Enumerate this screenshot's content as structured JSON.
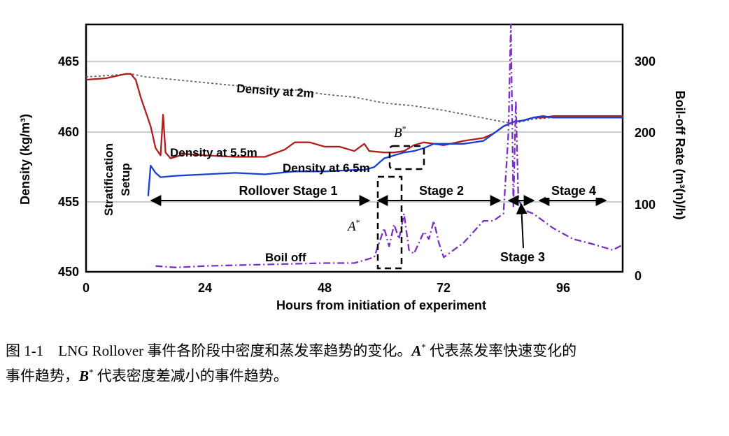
{
  "chart_data": {
    "type": "line",
    "xlabel": "Hours from initiation of experiment",
    "ylabel_left": "Density (kg/m³)",
    "ylabel_right": "Boil-off Rate (m³(n)/h)",
    "xlim": [
      0,
      108
    ],
    "ylim_left": [
      450,
      467
    ],
    "ylim_right": [
      0,
      340
    ],
    "x_ticks": [
      "0",
      "24",
      "48",
      "72",
      "96"
    ],
    "y_left_ticks": [
      "450",
      "455",
      "460",
      "465"
    ],
    "y_right_ticks": [
      "0",
      "100",
      "200",
      "300"
    ],
    "grid": true,
    "series": [
      {
        "name": "Density at 2m",
        "axis": "left",
        "color": "#666666",
        "style": "dotted",
        "x": [
          0,
          5,
          9,
          12,
          18,
          24,
          30,
          36,
          42,
          48,
          54,
          60,
          66,
          72,
          78,
          84,
          86,
          90,
          94,
          108
        ],
        "y": [
          463.4,
          463.5,
          463.6,
          463.4,
          463.2,
          463.0,
          462.8,
          462.6,
          462.5,
          462.2,
          462.0,
          461.6,
          461.4,
          461.1,
          460.7,
          460.3,
          460.2,
          460.5,
          460.6,
          460.6
        ]
      },
      {
        "name": "Density at 5.5m",
        "axis": "left",
        "color": "#b01e1e",
        "style": "solid",
        "x": [
          0,
          4,
          8,
          9,
          10,
          11,
          12,
          13,
          14,
          15,
          15.5,
          16,
          17,
          20,
          24,
          30,
          36,
          40,
          42,
          45,
          48,
          51,
          54,
          56,
          57,
          60,
          62,
          64,
          66,
          68,
          70,
          72,
          76,
          80,
          82,
          84,
          86,
          88,
          90,
          92,
          94,
          100,
          108
        ],
        "y": [
          463.2,
          463.3,
          463.6,
          463.6,
          463.2,
          462.0,
          461.0,
          460.0,
          458.5,
          458.0,
          460.8,
          458.2,
          457.8,
          458.1,
          458.0,
          457.9,
          457.9,
          458.4,
          458.9,
          458.9,
          458.6,
          458.6,
          458.3,
          458.8,
          458.3,
          458.2,
          458.2,
          458.3,
          458.7,
          458.9,
          458.8,
          458.7,
          459.0,
          459.2,
          459.5,
          460.0,
          460.3,
          460.4,
          460.6,
          460.6,
          460.7,
          460.7,
          460.7
        ]
      },
      {
        "name": "Density at 6.5m",
        "axis": "left",
        "color": "#1a3fd4",
        "style": "solid",
        "x": [
          12.5,
          13,
          14,
          15,
          18,
          24,
          30,
          36,
          42,
          48,
          54,
          56,
          58,
          60,
          62,
          64,
          66,
          68,
          70,
          72,
          76,
          80,
          82,
          84,
          86,
          88,
          90,
          92,
          94,
          100,
          108
        ],
        "y": [
          455.2,
          457.3,
          456.8,
          456.5,
          456.6,
          456.7,
          456.8,
          456.7,
          456.9,
          456.9,
          457.0,
          457.0,
          457.2,
          457.8,
          458.0,
          458.2,
          458.3,
          458.5,
          458.8,
          458.8,
          458.8,
          459.0,
          459.5,
          460.0,
          460.3,
          460.4,
          460.6,
          460.7,
          460.6,
          460.6,
          460.6
        ]
      },
      {
        "name": "Boil off",
        "axis": "right",
        "color": "#7a2fc4",
        "style": "dashdot",
        "x": [
          14,
          18,
          24,
          30,
          36,
          42,
          48,
          54,
          58,
          59,
          60,
          61,
          62,
          63,
          64,
          65,
          66,
          67,
          68,
          69,
          70,
          71,
          72,
          76,
          80,
          82,
          84,
          85,
          85.5,
          86,
          86.5,
          87,
          88,
          90,
          94,
          98,
          102,
          106,
          108
        ],
        "y": [
          8,
          6,
          8,
          9,
          10,
          11,
          12,
          12,
          20,
          40,
          60,
          35,
          65,
          45,
          80,
          30,
          25,
          40,
          55,
          45,
          70,
          40,
          20,
          40,
          70,
          70,
          80,
          190,
          340,
          90,
          235,
          100,
          85,
          80,
          60,
          45,
          38,
          30,
          37
        ]
      }
    ],
    "annotations": {
      "density_2m": "Density at 2m",
      "density_55m": "Density at 5.5m",
      "density_65m": "Density at 6.5m",
      "boil_off": "Boil off",
      "strat_1": "Stratification",
      "strat_2": "Setup",
      "rollover": "Rollover Stage 1",
      "stage2": "Stage 2",
      "stage3": "Stage 3",
      "stage4": "Stage 4",
      "a_letter": "A",
      "b_letter": "B",
      "star": "*"
    }
  },
  "caption": {
    "line1": "图 1-1　LNG Rollover 事件各阶段中密度和蒸发率趋势的变化。",
    "a_letter": "A",
    "star": "*",
    "line1_end": " 代表蒸发率快速变化的",
    "line2_start": "事件趋势，",
    "b_letter": "B",
    "line2_end": " 代表密度差减小的事件趋势。"
  }
}
